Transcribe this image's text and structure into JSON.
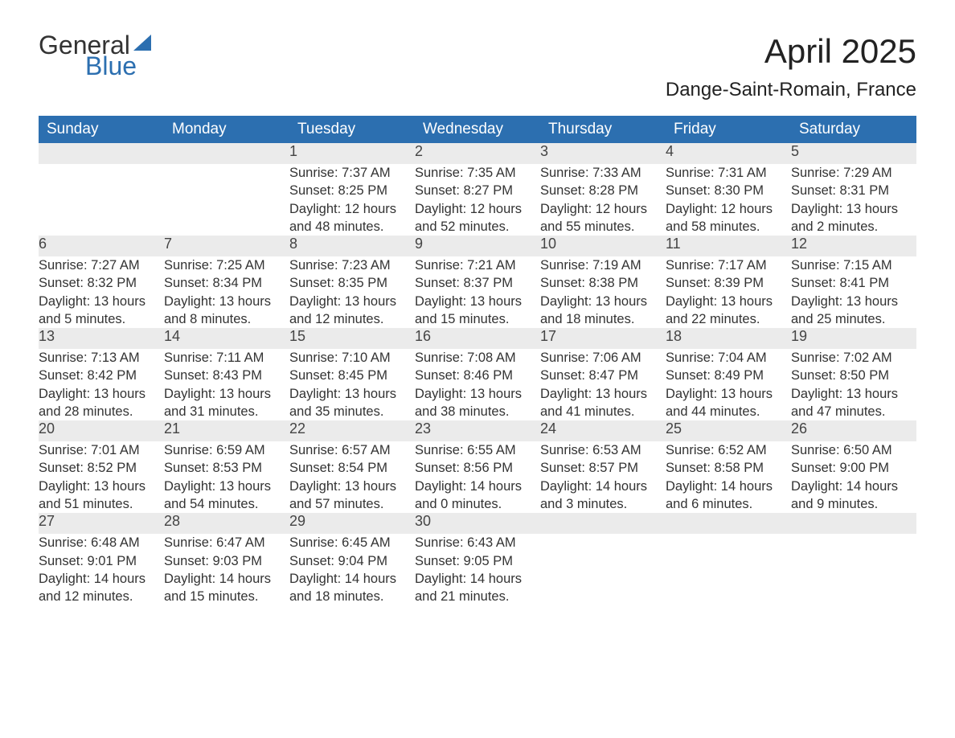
{
  "logo": {
    "word1": "General",
    "word2": "Blue"
  },
  "title": "April 2025",
  "location": "Dange-Saint-Romain, France",
  "colors": {
    "header_bg": "#2c6fb0",
    "daynum_bg": "#ebebeb",
    "logo_blue": "#2c6fb0"
  },
  "columns": [
    "Sunday",
    "Monday",
    "Tuesday",
    "Wednesday",
    "Thursday",
    "Friday",
    "Saturday"
  ],
  "weeks": [
    [
      null,
      null,
      {
        "n": "1",
        "sr": "7:37 AM",
        "ss": "8:25 PM",
        "dl": "12 hours and 48 minutes."
      },
      {
        "n": "2",
        "sr": "7:35 AM",
        "ss": "8:27 PM",
        "dl": "12 hours and 52 minutes."
      },
      {
        "n": "3",
        "sr": "7:33 AM",
        "ss": "8:28 PM",
        "dl": "12 hours and 55 minutes."
      },
      {
        "n": "4",
        "sr": "7:31 AM",
        "ss": "8:30 PM",
        "dl": "12 hours and 58 minutes."
      },
      {
        "n": "5",
        "sr": "7:29 AM",
        "ss": "8:31 PM",
        "dl": "13 hours and 2 minutes."
      }
    ],
    [
      {
        "n": "6",
        "sr": "7:27 AM",
        "ss": "8:32 PM",
        "dl": "13 hours and 5 minutes."
      },
      {
        "n": "7",
        "sr": "7:25 AM",
        "ss": "8:34 PM",
        "dl": "13 hours and 8 minutes."
      },
      {
        "n": "8",
        "sr": "7:23 AM",
        "ss": "8:35 PM",
        "dl": "13 hours and 12 minutes."
      },
      {
        "n": "9",
        "sr": "7:21 AM",
        "ss": "8:37 PM",
        "dl": "13 hours and 15 minutes."
      },
      {
        "n": "10",
        "sr": "7:19 AM",
        "ss": "8:38 PM",
        "dl": "13 hours and 18 minutes."
      },
      {
        "n": "11",
        "sr": "7:17 AM",
        "ss": "8:39 PM",
        "dl": "13 hours and 22 minutes."
      },
      {
        "n": "12",
        "sr": "7:15 AM",
        "ss": "8:41 PM",
        "dl": "13 hours and 25 minutes."
      }
    ],
    [
      {
        "n": "13",
        "sr": "7:13 AM",
        "ss": "8:42 PM",
        "dl": "13 hours and 28 minutes."
      },
      {
        "n": "14",
        "sr": "7:11 AM",
        "ss": "8:43 PM",
        "dl": "13 hours and 31 minutes."
      },
      {
        "n": "15",
        "sr": "7:10 AM",
        "ss": "8:45 PM",
        "dl": "13 hours and 35 minutes."
      },
      {
        "n": "16",
        "sr": "7:08 AM",
        "ss": "8:46 PM",
        "dl": "13 hours and 38 minutes."
      },
      {
        "n": "17",
        "sr": "7:06 AM",
        "ss": "8:47 PM",
        "dl": "13 hours and 41 minutes."
      },
      {
        "n": "18",
        "sr": "7:04 AM",
        "ss": "8:49 PM",
        "dl": "13 hours and 44 minutes."
      },
      {
        "n": "19",
        "sr": "7:02 AM",
        "ss": "8:50 PM",
        "dl": "13 hours and 47 minutes."
      }
    ],
    [
      {
        "n": "20",
        "sr": "7:01 AM",
        "ss": "8:52 PM",
        "dl": "13 hours and 51 minutes."
      },
      {
        "n": "21",
        "sr": "6:59 AM",
        "ss": "8:53 PM",
        "dl": "13 hours and 54 minutes."
      },
      {
        "n": "22",
        "sr": "6:57 AM",
        "ss": "8:54 PM",
        "dl": "13 hours and 57 minutes."
      },
      {
        "n": "23",
        "sr": "6:55 AM",
        "ss": "8:56 PM",
        "dl": "14 hours and 0 minutes."
      },
      {
        "n": "24",
        "sr": "6:53 AM",
        "ss": "8:57 PM",
        "dl": "14 hours and 3 minutes."
      },
      {
        "n": "25",
        "sr": "6:52 AM",
        "ss": "8:58 PM",
        "dl": "14 hours and 6 minutes."
      },
      {
        "n": "26",
        "sr": "6:50 AM",
        "ss": "9:00 PM",
        "dl": "14 hours and 9 minutes."
      }
    ],
    [
      {
        "n": "27",
        "sr": "6:48 AM",
        "ss": "9:01 PM",
        "dl": "14 hours and 12 minutes."
      },
      {
        "n": "28",
        "sr": "6:47 AM",
        "ss": "9:03 PM",
        "dl": "14 hours and 15 minutes."
      },
      {
        "n": "29",
        "sr": "6:45 AM",
        "ss": "9:04 PM",
        "dl": "14 hours and 18 minutes."
      },
      {
        "n": "30",
        "sr": "6:43 AM",
        "ss": "9:05 PM",
        "dl": "14 hours and 21 minutes."
      },
      null,
      null,
      null
    ]
  ],
  "labels": {
    "sunrise": "Sunrise: ",
    "sunset": "Sunset: ",
    "daylight": "Daylight: "
  }
}
